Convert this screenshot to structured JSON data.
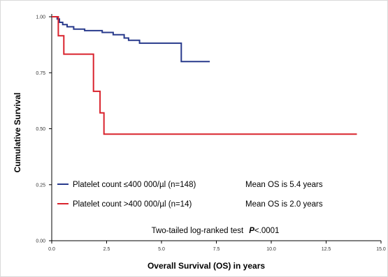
{
  "chart_data": {
    "type": "line",
    "xlabel": "Overall Survival (OS) in years",
    "ylabel": "Cumulative Survival",
    "xlim": [
      0,
      15
    ],
    "ylim": [
      0,
      1
    ],
    "x_ticks": [
      "0.0",
      "2.5",
      "5.0",
      "7.5",
      "10.0",
      "12.5",
      "15.0"
    ],
    "y_ticks": [
      "0.00",
      "0.25",
      "0.50",
      "0.75",
      "1.00"
    ],
    "series": [
      {
        "name": "Platelet count ≤400 000/µl (n=148)",
        "color": "#283a8c",
        "points": [
          [
            0.0,
            1.0
          ],
          [
            0.25,
            1.0
          ],
          [
            0.25,
            0.99
          ],
          [
            0.35,
            0.99
          ],
          [
            0.35,
            0.975
          ],
          [
            0.5,
            0.975
          ],
          [
            0.5,
            0.965
          ],
          [
            0.7,
            0.965
          ],
          [
            0.7,
            0.955
          ],
          [
            1.0,
            0.955
          ],
          [
            1.0,
            0.945
          ],
          [
            1.5,
            0.945
          ],
          [
            1.5,
            0.938
          ],
          [
            2.3,
            0.938
          ],
          [
            2.3,
            0.93
          ],
          [
            2.8,
            0.93
          ],
          [
            2.8,
            0.92
          ],
          [
            3.3,
            0.92
          ],
          [
            3.3,
            0.905
          ],
          [
            3.5,
            0.905
          ],
          [
            3.5,
            0.895
          ],
          [
            4.0,
            0.895
          ],
          [
            4.0,
            0.882
          ],
          [
            5.9,
            0.882
          ],
          [
            5.9,
            0.8
          ],
          [
            7.2,
            0.8
          ]
        ]
      },
      {
        "name": "Platelet count >400 000/µl (n=14)",
        "color": "#d9232d",
        "points": [
          [
            0.0,
            1.0
          ],
          [
            0.3,
            1.0
          ],
          [
            0.3,
            0.915
          ],
          [
            0.55,
            0.915
          ],
          [
            0.55,
            0.833
          ],
          [
            1.9,
            0.833
          ],
          [
            1.9,
            0.667
          ],
          [
            2.2,
            0.667
          ],
          [
            2.2,
            0.571
          ],
          [
            2.38,
            0.571
          ],
          [
            2.38,
            0.476
          ],
          [
            13.9,
            0.476
          ]
        ]
      }
    ],
    "legend": [
      {
        "label": "Platelet count ≤400 000/µl  (n=148)",
        "mean": "Mean OS is 5.4 years",
        "color": "#283a8c"
      },
      {
        "label": "Platelet count >400 000/µl  (n=14)",
        "mean": "Mean OS is 2.0 years",
        "color": "#d9232d"
      }
    ],
    "annotation_prefix": "Two-tailed log-ranked test",
    "annotation_p": "P",
    "annotation_suffix": "<.0001",
    "legend_position": "bottom-left",
    "grid": false
  }
}
